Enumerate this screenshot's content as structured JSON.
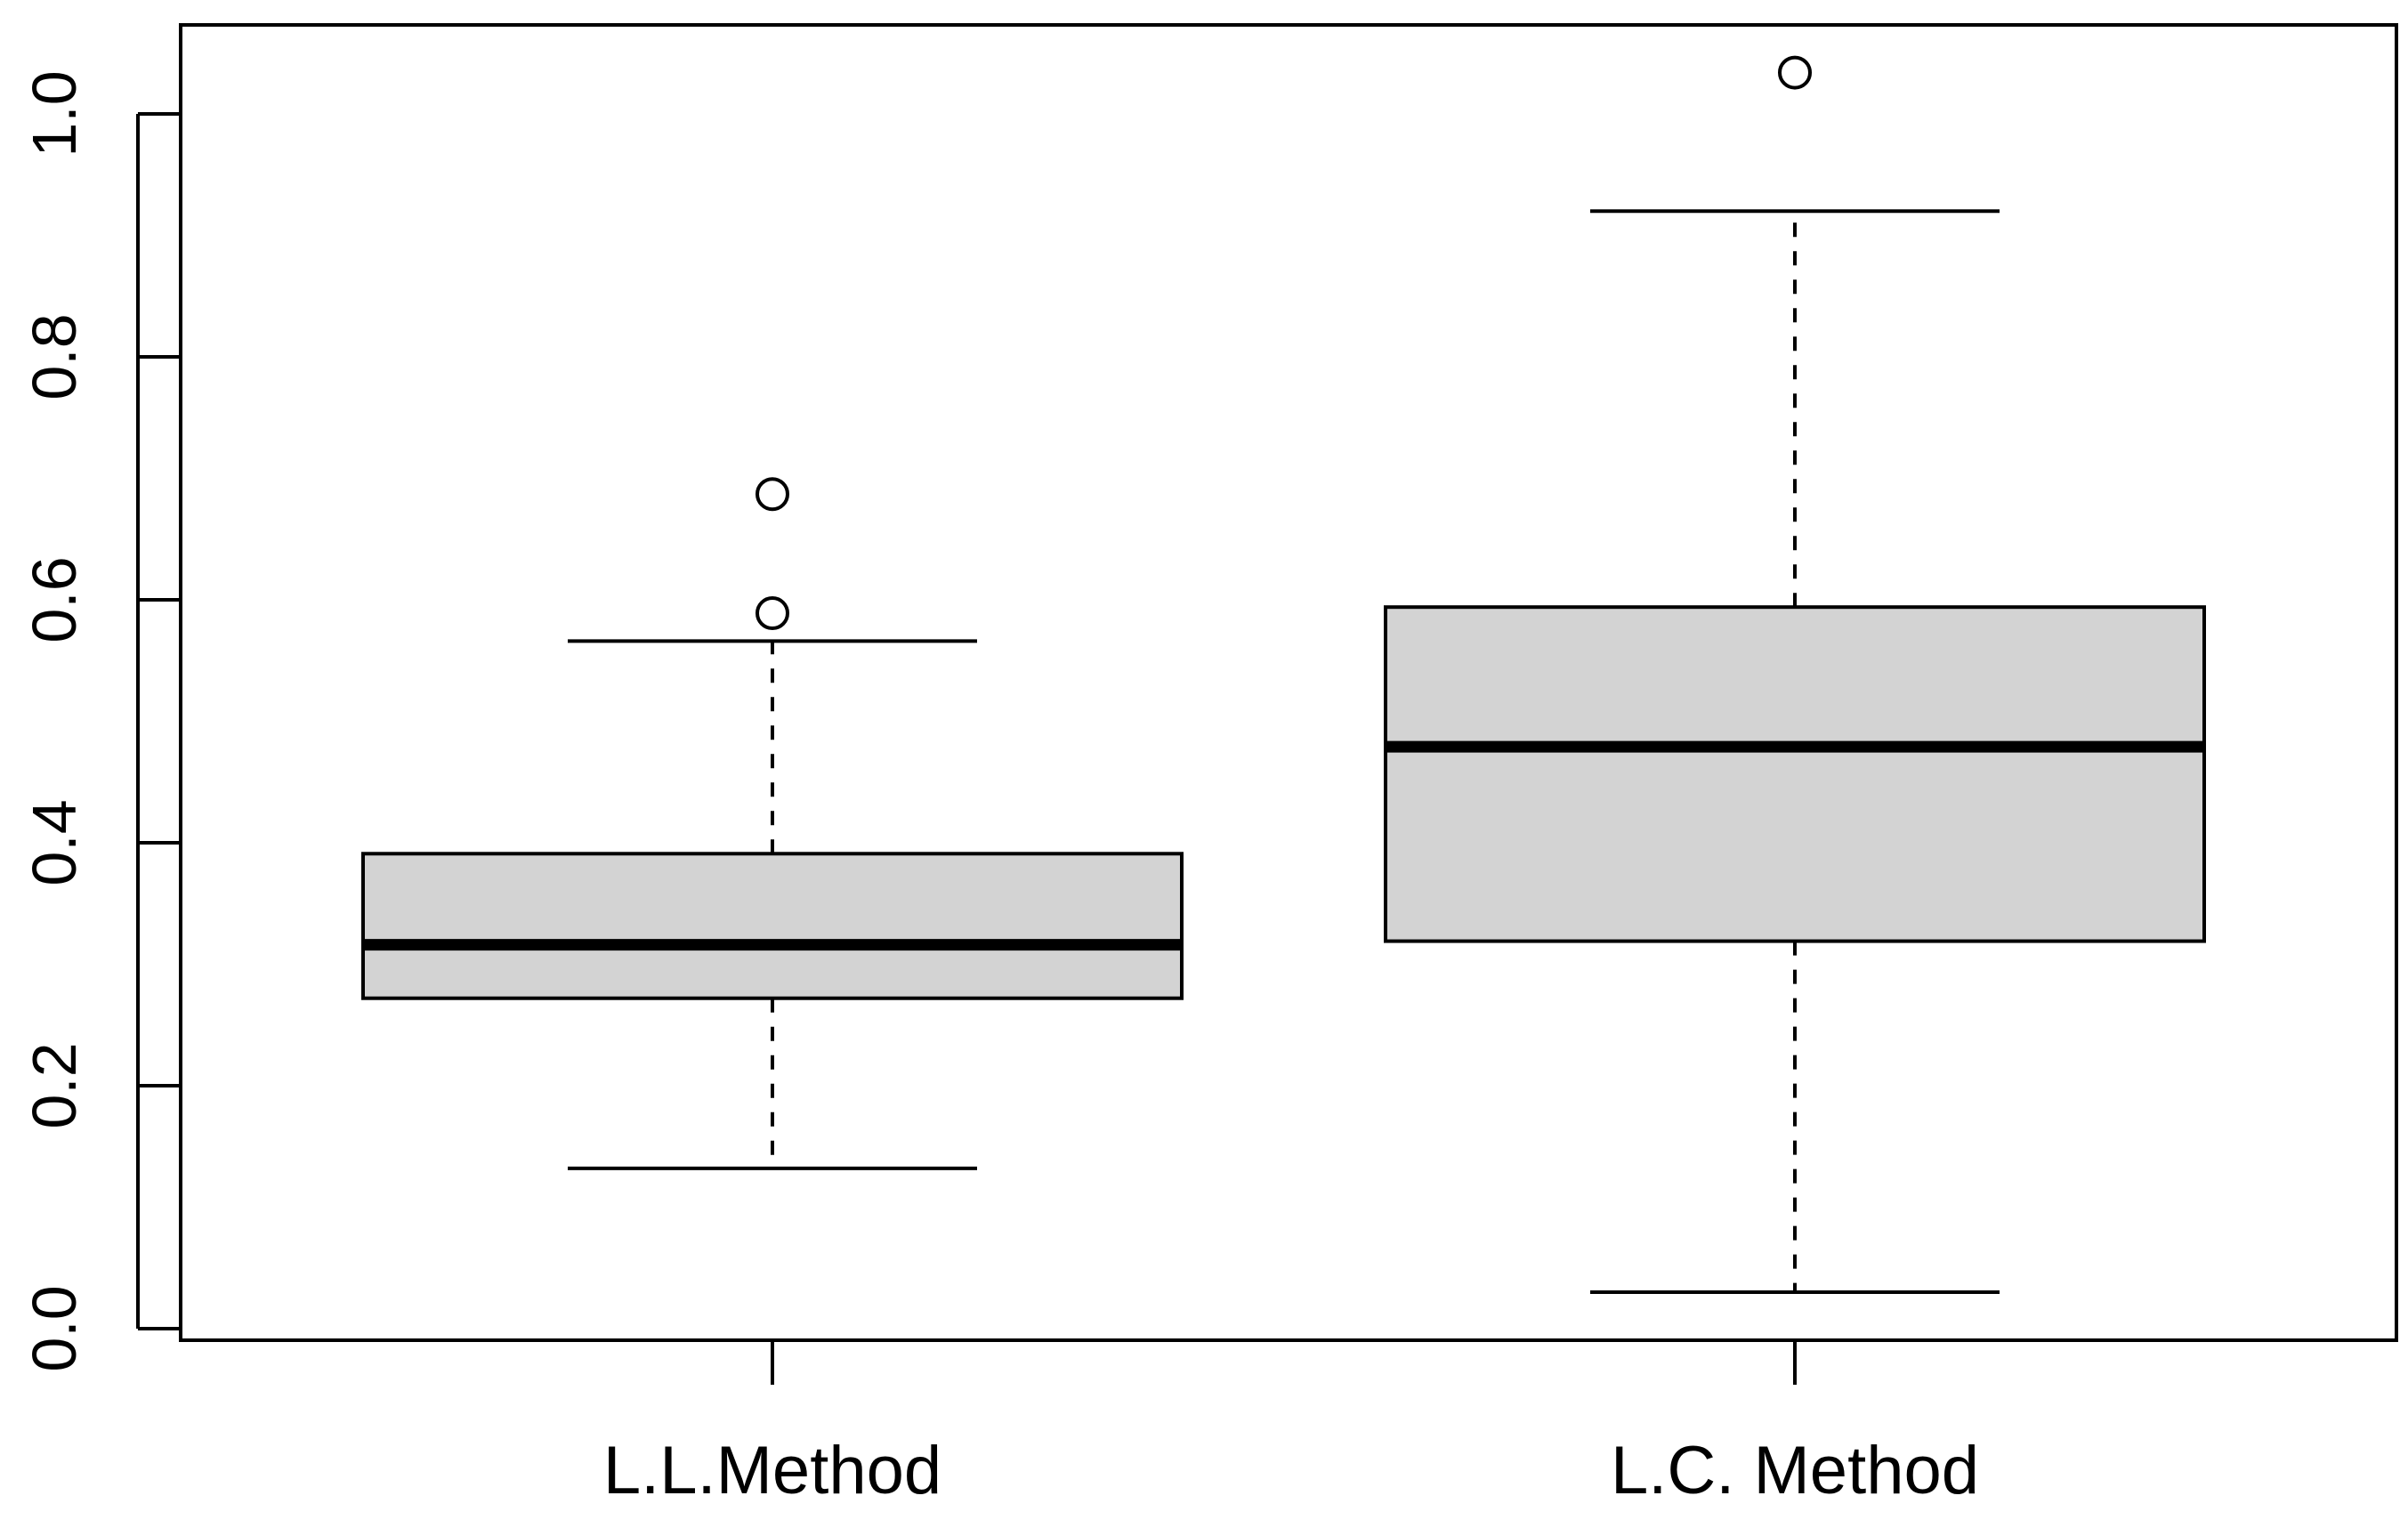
{
  "chart_data": {
    "type": "box",
    "categories": [
      "L.L.Method",
      "L.C. Method"
    ],
    "boxes": [
      {
        "category": "L.L.Method",
        "whisker_low": 0.132,
        "q1": 0.272,
        "median": 0.316,
        "q3": 0.391,
        "whisker_high": 0.566,
        "outliers": [
          0.589,
          0.687
        ]
      },
      {
        "category": "L.C. Method",
        "whisker_low": 0.03,
        "q1": 0.319,
        "median": 0.479,
        "q3": 0.594,
        "whisker_high": 0.92,
        "outliers": [
          1.034
        ]
      }
    ],
    "yticks": [
      0.0,
      0.2,
      0.4,
      0.6,
      0.8,
      1.0
    ],
    "ytick_labels": [
      "0.0",
      "0.2",
      "0.4",
      "0.6",
      "0.8",
      "1.0"
    ],
    "ylim": [
      0.0,
      1.0
    ],
    "title": "",
    "xlabel": "",
    "ylabel": "",
    "grid": false,
    "box_fill": "#d3d3d3",
    "line_color": "#000000"
  }
}
